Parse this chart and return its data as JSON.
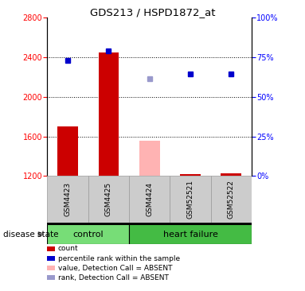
{
  "title": "GDS213 / HSPD1872_at",
  "samples": [
    "GSM4423",
    "GSM4425",
    "GSM4424",
    "GSM52521",
    "GSM52522"
  ],
  "groups": [
    "control",
    "control",
    "heart failure",
    "heart failure",
    "heart failure"
  ],
  "ylim_left": [
    1200,
    2800
  ],
  "ylim_right": [
    0,
    100
  ],
  "yticks_left": [
    1200,
    1600,
    2000,
    2400,
    2800
  ],
  "yticks_right": [
    0,
    25,
    50,
    75,
    100
  ],
  "bar_values": [
    1700,
    2450,
    1560,
    1220,
    1230
  ],
  "bar_colors": [
    "#cc0000",
    "#cc0000",
    "#ffb3b3",
    "#cc0000",
    "#cc0000"
  ],
  "dot_values": [
    2370,
    2460,
    2180,
    2230,
    2230
  ],
  "dot_colors": [
    "#0000cc",
    "#0000cc",
    "#9999cc",
    "#0000cc",
    "#0000cc"
  ],
  "bar_bottom": 1200,
  "control_color": "#77dd77",
  "heartfailure_color": "#44bb44",
  "sample_box_color": "#cccccc",
  "legend": [
    {
      "label": "count",
      "color": "#cc0000"
    },
    {
      "label": "percentile rank within the sample",
      "color": "#0000cc"
    },
    {
      "label": "value, Detection Call = ABSENT",
      "color": "#ffb3b3"
    },
    {
      "label": "rank, Detection Call = ABSENT",
      "color": "#9999cc"
    }
  ]
}
